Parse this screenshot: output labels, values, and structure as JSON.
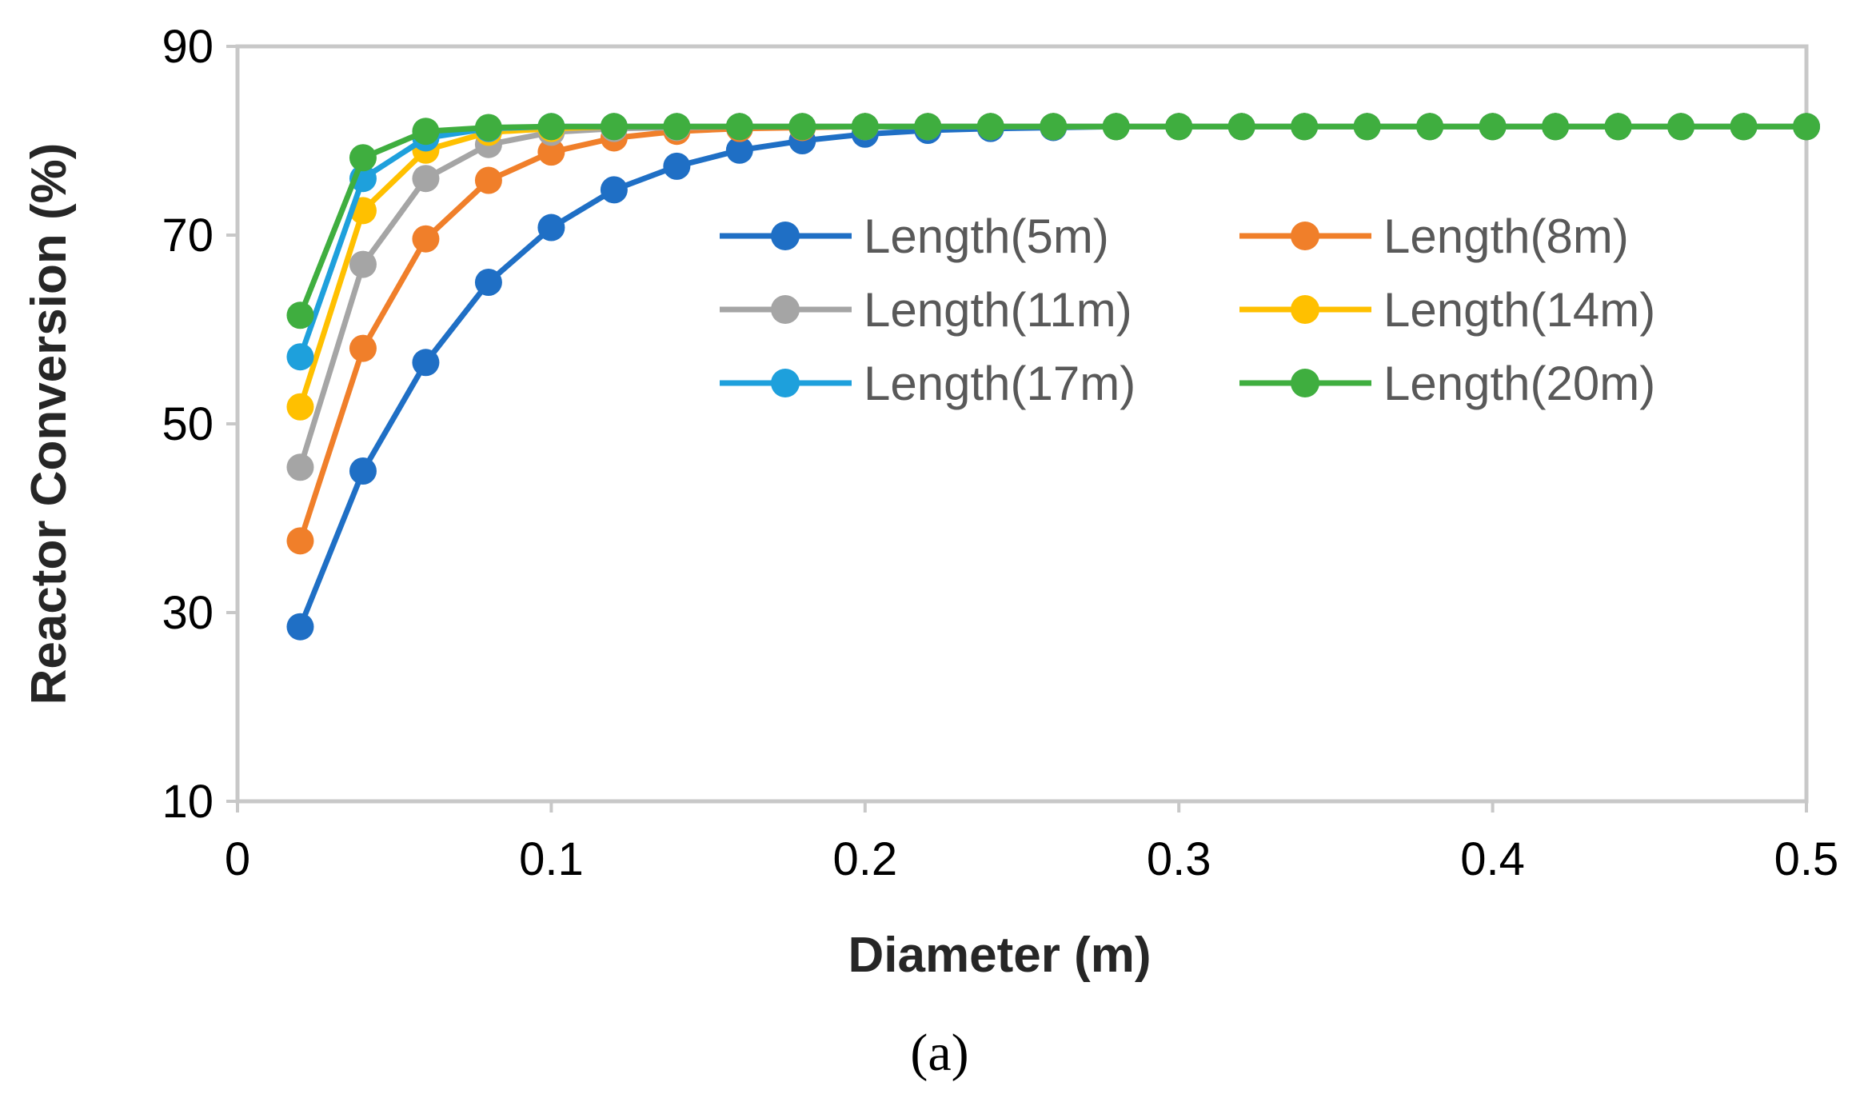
{
  "chart_data": {
    "type": "line",
    "title": "",
    "xlabel": "Diameter (m)",
    "ylabel": "Reactor Conversion (%)",
    "panel_label": "(a)",
    "xlim": [
      0,
      0.5
    ],
    "ylim": [
      10,
      90
    ],
    "xticks": [
      0,
      0.1,
      0.2,
      0.3,
      0.4,
      0.5
    ],
    "xtick_labels": [
      "0",
      "0.1",
      "0.2",
      "0.3",
      "0.4",
      "0.5"
    ],
    "yticks": [
      10,
      30,
      50,
      70,
      90
    ],
    "ytick_labels": [
      "10",
      "30",
      "50",
      "70",
      "90"
    ],
    "grid": false,
    "legend_position": "upper-right, two columns",
    "x": [
      0.02,
      0.04,
      0.06,
      0.08,
      0.1,
      0.12,
      0.14,
      0.16,
      0.18,
      0.2,
      0.22,
      0.24,
      0.26,
      0.28,
      0.3,
      0.32,
      0.34,
      0.36,
      0.38,
      0.4,
      0.42,
      0.44,
      0.46,
      0.48,
      0.5
    ],
    "series": [
      {
        "name": "Length(5m)",
        "color": "#1f6fc5",
        "values": [
          28.5,
          45.0,
          56.5,
          65.0,
          70.8,
          74.8,
          77.3,
          79.0,
          80.0,
          80.7,
          81.1,
          81.3,
          81.4,
          81.5,
          81.5,
          81.5,
          81.5,
          81.5,
          81.5,
          81.5,
          81.5,
          81.5,
          81.5,
          81.5,
          81.5
        ]
      },
      {
        "name": "Length(8m)",
        "color": "#f07f2a",
        "values": [
          37.6,
          58.0,
          69.6,
          75.8,
          78.8,
          80.3,
          81.0,
          81.3,
          81.4,
          81.5,
          81.5,
          81.5,
          81.5,
          81.5,
          81.5,
          81.5,
          81.5,
          81.5,
          81.5,
          81.5,
          81.5,
          81.5,
          81.5,
          81.5,
          81.5
        ]
      },
      {
        "name": "Length(11m)",
        "color": "#a5a5a5",
        "values": [
          45.4,
          66.9,
          76.0,
          79.6,
          80.9,
          81.3,
          81.4,
          81.5,
          81.5,
          81.5,
          81.5,
          81.5,
          81.5,
          81.5,
          81.5,
          81.5,
          81.5,
          81.5,
          81.5,
          81.5,
          81.5,
          81.5,
          81.5,
          81.5,
          81.5
        ]
      },
      {
        "name": "Length(14m)",
        "color": "#ffc000",
        "values": [
          51.8,
          72.6,
          79.0,
          80.9,
          81.3,
          81.5,
          81.5,
          81.5,
          81.5,
          81.5,
          81.5,
          81.5,
          81.5,
          81.5,
          81.5,
          81.5,
          81.5,
          81.5,
          81.5,
          81.5,
          81.5,
          81.5,
          81.5,
          81.5,
          81.5
        ]
      },
      {
        "name": "Length(17m)",
        "color": "#1ea0dc",
        "values": [
          57.1,
          76.0,
          80.3,
          81.3,
          81.5,
          81.5,
          81.5,
          81.5,
          81.5,
          81.5,
          81.5,
          81.5,
          81.5,
          81.5,
          81.5,
          81.5,
          81.5,
          81.5,
          81.5,
          81.5,
          81.5,
          81.5,
          81.5,
          81.5,
          81.5
        ]
      },
      {
        "name": "Length(20m)",
        "color": "#3fae3f",
        "values": [
          61.5,
          78.2,
          81.0,
          81.4,
          81.5,
          81.5,
          81.5,
          81.5,
          81.5,
          81.5,
          81.5,
          81.5,
          81.5,
          81.5,
          81.5,
          81.5,
          81.5,
          81.5,
          81.5,
          81.5,
          81.5,
          81.5,
          81.5,
          81.5,
          81.5
        ]
      }
    ]
  }
}
